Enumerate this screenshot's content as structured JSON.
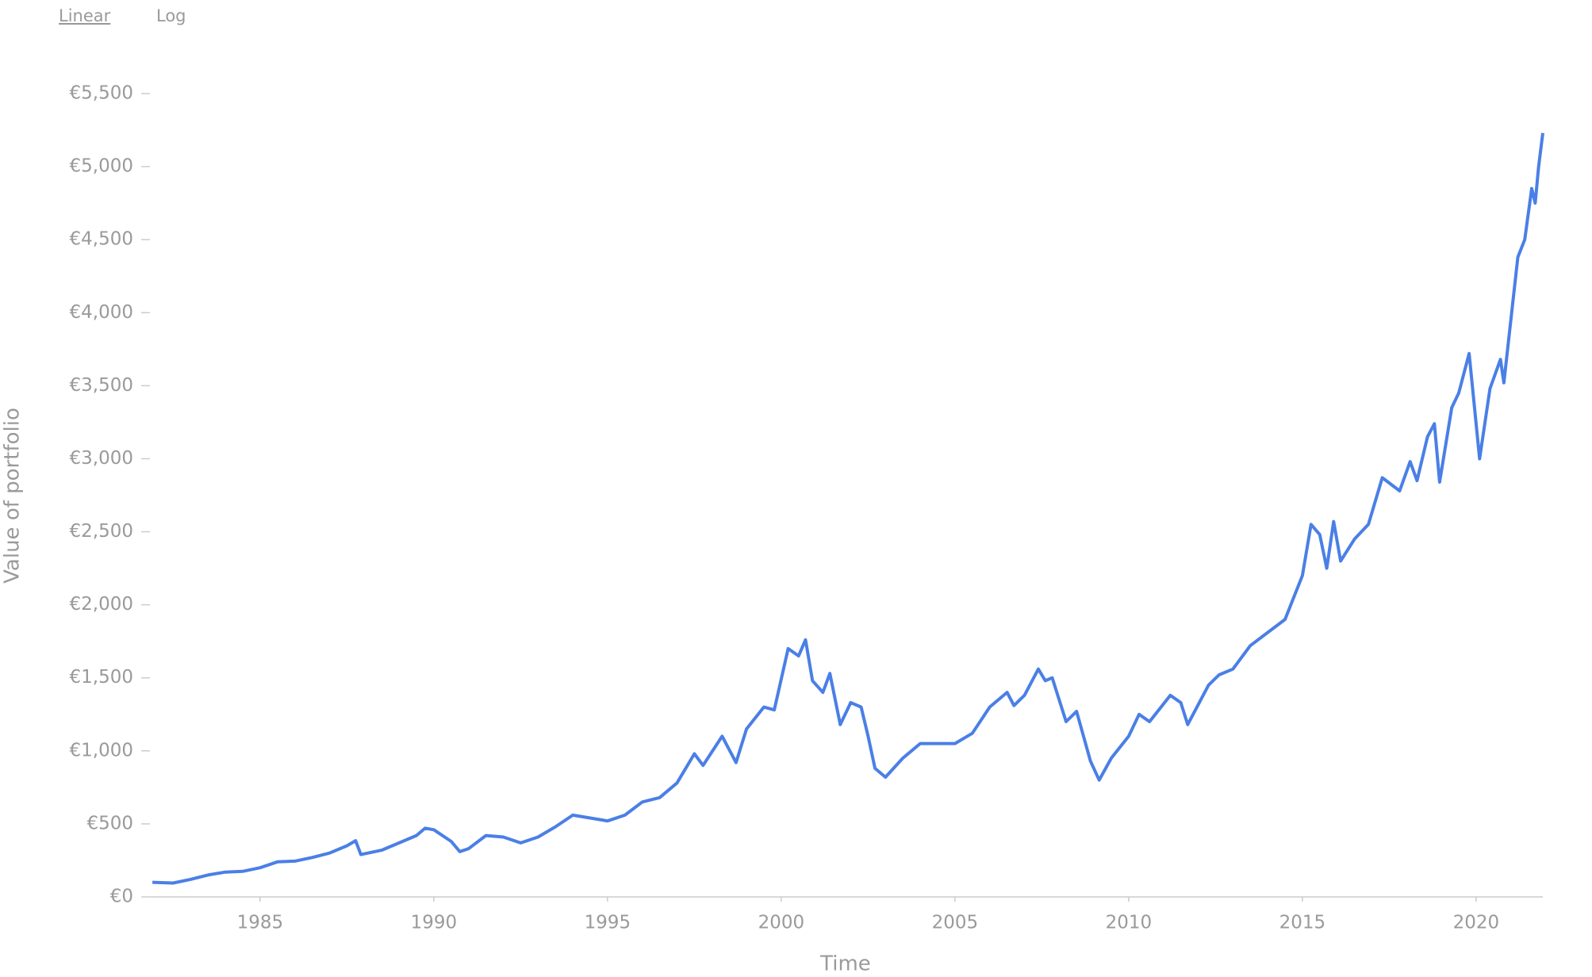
{
  "scale_buttons": [
    "Linear",
    "Log"
  ],
  "chart_data": {
    "type": "line",
    "scale": "linear",
    "x_label": "Time",
    "y_label": "Value of portfolio",
    "xlim": [
      1981.83,
      2021.92
    ],
    "xticks": [
      1985,
      1990,
      1995,
      2000,
      2005,
      2010,
      2015,
      2020
    ],
    "ylim": [
      0,
      5500
    ],
    "yticks": [
      {
        "value": 0,
        "label": "€0"
      },
      {
        "value": 500,
        "label": "€500"
      },
      {
        "value": 1000,
        "label": "€1,000"
      },
      {
        "value": 1500,
        "label": "€1,500"
      },
      {
        "value": 2000,
        "label": "€2,000"
      },
      {
        "value": 2500,
        "label": "€2,500"
      },
      {
        "value": 3000,
        "label": "€3,000"
      },
      {
        "value": 3500,
        "label": "€3,500"
      },
      {
        "value": 4000,
        "label": "€4,000"
      },
      {
        "value": 4500,
        "label": "€4,500"
      },
      {
        "value": 5000,
        "label": "€5,000"
      },
      {
        "value": 5500,
        "label": "€5,500"
      }
    ],
    "color": "#4a7fe6",
    "x": [
      1981.9,
      1982.5,
      1983,
      1983.5,
      1984,
      1984.5,
      1985,
      1985.5,
      1986,
      1986.5,
      1987,
      1987.5,
      1987.75,
      1987.9,
      1988.5,
      1989,
      1989.5,
      1989.75,
      1990,
      1990.5,
      1990.75,
      1991,
      1991.5,
      1992,
      1992.5,
      1993,
      1993.5,
      1994,
      1994.5,
      1995,
      1995.5,
      1996,
      1996.5,
      1997,
      1997.5,
      1997.75,
      1998.3,
      1998.7,
      1999,
      1999.5,
      1999.8,
      2000.2,
      2000.5,
      2000.7,
      2000.9,
      2001.2,
      2001.4,
      2001.7,
      2002,
      2002.3,
      2002.5,
      2002.7,
      2003,
      2003.5,
      2004,
      2004.5,
      2005,
      2005.5,
      2006,
      2006.5,
      2006.7,
      2007,
      2007.4,
      2007.6,
      2007.8,
      2008.2,
      2008.5,
      2008.9,
      2009.15,
      2009.5,
      2010,
      2010.3,
      2010.6,
      2011.2,
      2011.5,
      2011.7,
      2012.3,
      2012.6,
      2013,
      2013.5,
      2014,
      2014.5,
      2015,
      2015.25,
      2015.5,
      2015.7,
      2015.9,
      2016.1,
      2016.5,
      2016.9,
      2017.3,
      2017.8,
      2018.1,
      2018.3,
      2018.6,
      2018.8,
      2018.95,
      2019.3,
      2019.5,
      2019.8,
      2020.1,
      2020.4,
      2020.7,
      2020.8,
      2021,
      2021.2,
      2021.4,
      2021.6,
      2021.7,
      2021.8,
      2021.92
    ],
    "values": [
      100,
      95,
      120,
      150,
      170,
      175,
      200,
      240,
      245,
      270,
      300,
      350,
      385,
      290,
      320,
      370,
      420,
      470,
      460,
      380,
      310,
      330,
      420,
      410,
      370,
      410,
      480,
      560,
      540,
      520,
      560,
      650,
      680,
      780,
      980,
      900,
      1100,
      920,
      1150,
      1300,
      1280,
      1700,
      1650,
      1760,
      1480,
      1400,
      1530,
      1180,
      1330,
      1300,
      1100,
      880,
      820,
      950,
      1050,
      1050,
      1050,
      1120,
      1300,
      1400,
      1310,
      1380,
      1560,
      1480,
      1500,
      1200,
      1270,
      930,
      800,
      950,
      1100,
      1250,
      1200,
      1380,
      1330,
      1180,
      1450,
      1520,
      1560,
      1720,
      1810,
      1900,
      2200,
      2550,
      2480,
      2250,
      2570,
      2300,
      2450,
      2550,
      2870,
      2780,
      2980,
      2850,
      3150,
      3240,
      2840,
      3350,
      3450,
      3720,
      3000,
      3480,
      3680,
      3520,
      3950,
      4380,
      4500,
      4850,
      4750,
      5000,
      5230
    ]
  }
}
